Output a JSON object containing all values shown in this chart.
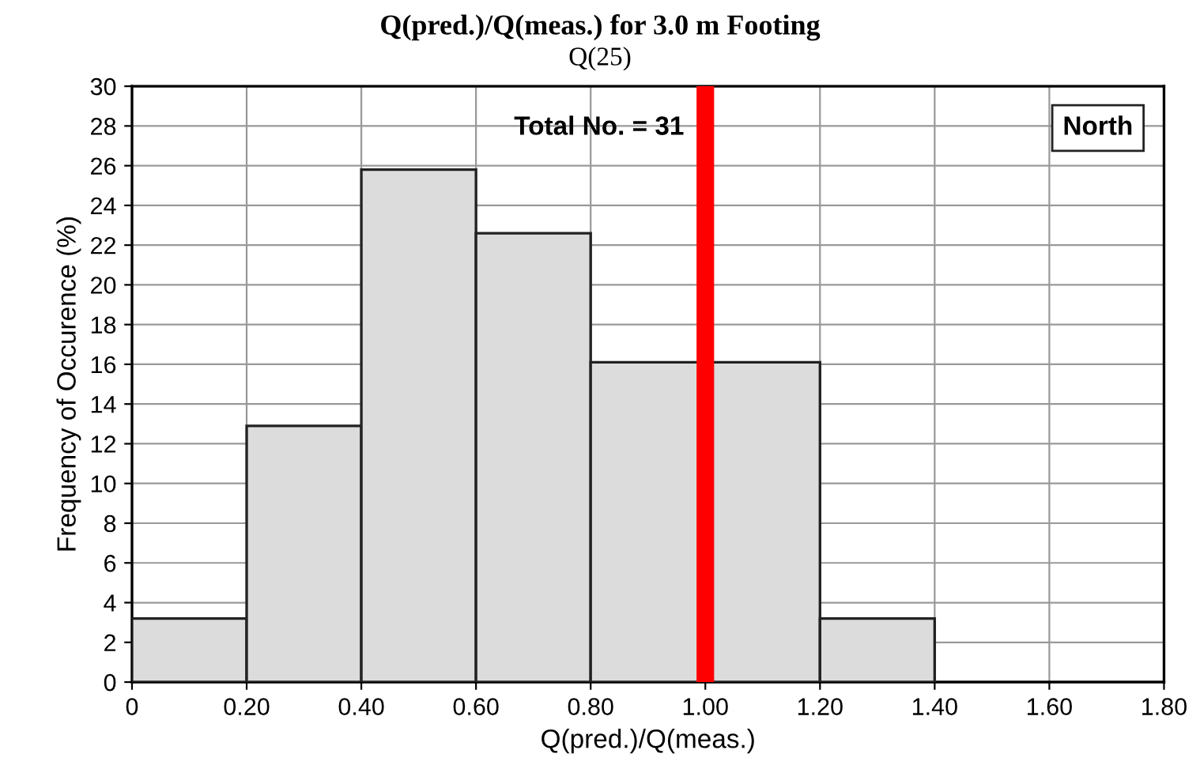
{
  "chart_data": {
    "type": "histogram",
    "title": "Q(pred.)/Q(meas.) for 3.0 m Footing",
    "subtitle": "Q(25)",
    "xlabel": "Q(pred.)/Q(meas.)",
    "ylabel": "Frequency of Occurence (%)",
    "bins": [
      0.0,
      0.2,
      0.4,
      0.6,
      0.8,
      1.0,
      1.2,
      1.4
    ],
    "values": [
      3.2,
      12.9,
      25.8,
      22.6,
      16.1,
      16.1,
      3.2
    ],
    "color": "#dcdcdc",
    "xlim": [
      0,
      1.8
    ],
    "xticks": [
      0,
      {
        "value": 0.2,
        "label": "0.20"
      },
      {
        "value": 0.4,
        "label": "0.40"
      },
      {
        "value": 0.6,
        "label": "0.60"
      },
      {
        "value": 0.8,
        "label": "0.80"
      },
      {
        "value": 1.0,
        "label": "1.00"
      },
      {
        "value": 1.2,
        "label": "1.20"
      },
      {
        "value": 1.4,
        "label": "1.40"
      },
      {
        "value": 1.6,
        "label": "1.60"
      },
      {
        "value": 1.8,
        "label": "1.80"
      }
    ],
    "ylim": [
      0,
      30
    ],
    "yticks": [
      0,
      2,
      4,
      6,
      8,
      10,
      12,
      14,
      16,
      18,
      20,
      22,
      24,
      26,
      28,
      30
    ],
    "grid": true,
    "ref_lines": [
      {
        "axis": "x",
        "value": 1.0,
        "color": "#ff0000"
      }
    ],
    "annotations": [
      "Total No. = 31",
      "North"
    ]
  }
}
